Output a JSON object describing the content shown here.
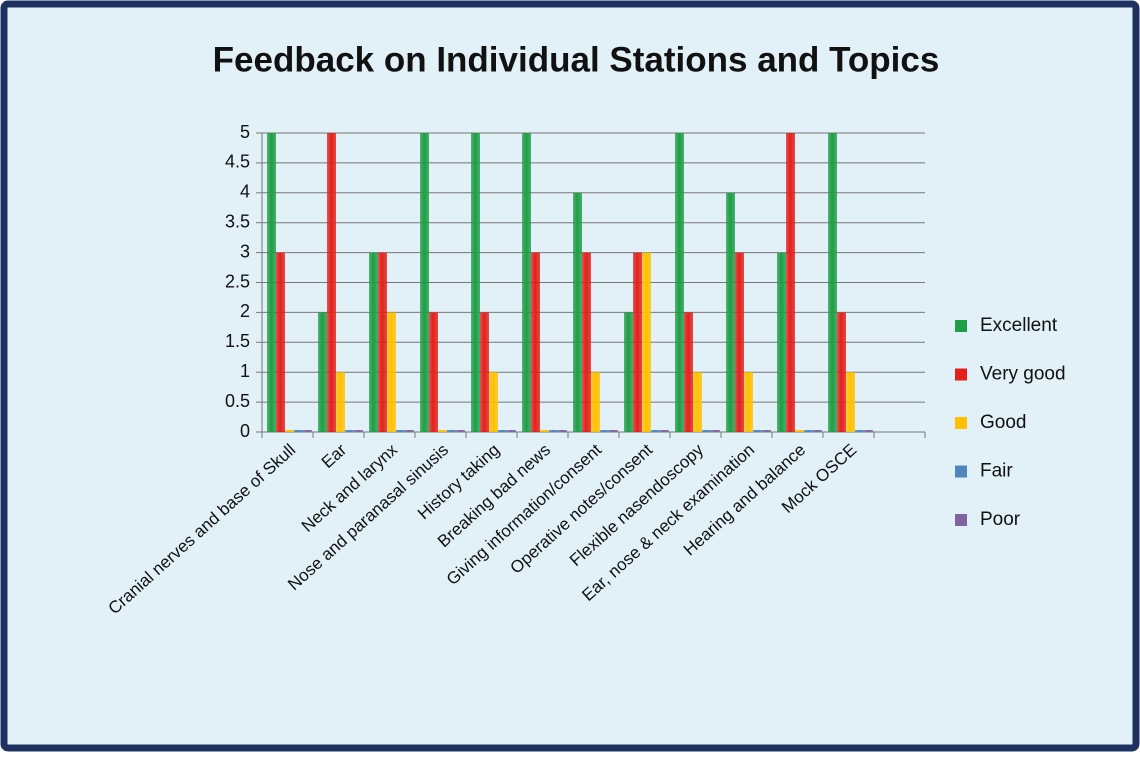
{
  "chart_data": {
    "type": "bar",
    "title": "Feedback on Individual Stations and Topics",
    "categories": [
      "Cranial nerves and base of Skull",
      "Ear",
      "Neck and larynx",
      "Nose and paranasal sinusis",
      "History taking",
      "Breaking bad news",
      "Giving information/consent",
      "Operative notes/consent",
      "Flexible nasendoscopy",
      "Ear, nose & neck examination",
      "Hearing and balance",
      "Mock OSCE",
      null
    ],
    "series": [
      {
        "name": "Excellent",
        "color": "#1f9e45",
        "values": [
          5,
          2,
          3,
          5,
          5,
          5,
          4,
          2,
          5,
          4,
          3,
          5,
          null
        ]
      },
      {
        "name": "Very good",
        "color": "#e3201b",
        "values": [
          3,
          5,
          3,
          2,
          2,
          3,
          3,
          3,
          2,
          3,
          5,
          2,
          null
        ]
      },
      {
        "name": "Good",
        "color": "#ffc000",
        "values": [
          0,
          1,
          2,
          0,
          1,
          0,
          1,
          3,
          1,
          1,
          0,
          1,
          null
        ]
      },
      {
        "name": "Fair",
        "color": "#4f86c0",
        "values": [
          0,
          0,
          0,
          0,
          0,
          0,
          0,
          0,
          0,
          0,
          0,
          0,
          null
        ]
      },
      {
        "name": "Poor",
        "color": "#8064a2",
        "values": [
          0,
          0,
          0,
          0,
          0,
          0,
          0,
          0,
          0,
          0,
          0,
          0,
          null
        ]
      }
    ],
    "ylim": [
      0,
      5
    ],
    "yticks": [
      0,
      0.5,
      1,
      1.5,
      2,
      2.5,
      3,
      3.5,
      4,
      4.5,
      5
    ],
    "grid": true,
    "legend": "right"
  }
}
